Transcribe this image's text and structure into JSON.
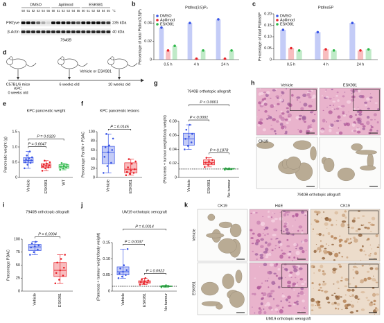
{
  "blot": {
    "panel_label": "a",
    "treatments": [
      "DMSO",
      "Apilimod",
      "ESK981"
    ],
    "temperatures": [
      50,
      51,
      52,
      53,
      54,
      55
    ],
    "temperature_unit": "°C",
    "proteins": [
      "PIKfyve",
      "β-Actin"
    ],
    "sizes": [
      "235 kDa",
      "40 kDa"
    ],
    "cell_line": "7940B"
  },
  "timeline": {
    "panel_label": "d",
    "strain": "C57BL/6 mice",
    "model": "KPC",
    "timepoints": [
      "0 weeks old",
      "6 weeks old",
      "10 weeks old"
    ],
    "treatment": "Vehicle or ESK981"
  },
  "chart_data": [
    {
      "type": "bar",
      "panel_label": "b",
      "title": "PtdIns(3,5)P₂",
      "ylabel": "Percentage of total PtdIns(3,5)P₂",
      "categories": [
        "0.5 h",
        "4 h",
        "24 h"
      ],
      "series": [
        {
          "name": "DMSO",
          "color": "#3a56e6",
          "values": [
            0.035,
            0.04,
            0.044
          ]
        },
        {
          "name": "Apilimod",
          "color": "#e8232a",
          "values": [
            0.01,
            0.001,
            0.001
          ]
        },
        {
          "name": "ESK981",
          "color": "#2fb84a",
          "values": [
            0.015,
            0.01,
            0.01
          ]
        }
      ],
      "ylim": [
        0,
        0.05
      ],
      "yticks": [
        0,
        0.02,
        0.04
      ],
      "legend": "upper left"
    },
    {
      "type": "bar",
      "panel_label": "c",
      "title": "PtdIns5P",
      "ylabel": "Percentage of total PtdIns5P",
      "categories": [
        "0.5 h",
        "4 h",
        "24 h"
      ],
      "series": [
        {
          "name": "DMSO",
          "color": "#3a56e6",
          "values": [
            0.13,
            0.12,
            0.16
          ]
        },
        {
          "name": "Apilimod",
          "color": "#e8232a",
          "values": [
            0.05,
            0.045,
            0.04
          ]
        },
        {
          "name": "ESK981",
          "color": "#2fb84a",
          "values": [
            0.04,
            0.04,
            0.045
          ]
        }
      ],
      "ylim": [
        0,
        0.2
      ],
      "yticks": [
        0,
        0.05,
        {
          "value": 0.1,
          "label": "0.10"
        },
        0.15,
        {
          "value": 0.2,
          "label": "0.20"
        }
      ],
      "legend": "upper left"
    },
    {
      "type": "box",
      "panel_label": "e",
      "title": "KPC pancreatic weight",
      "ylabel": "Pancreatic weight (g)",
      "categories": [
        "Vehicle",
        "ESK981",
        "WT"
      ],
      "colors": [
        "#3a56e6",
        "#e8232a",
        "#2fb84a"
      ],
      "boxes": [
        {
          "min": 0.3,
          "q1": 0.48,
          "median": 0.56,
          "q3": 0.65,
          "max": 0.85
        },
        {
          "min": 0.22,
          "q1": 0.32,
          "median": 0.38,
          "q3": 0.45,
          "max": 0.55
        },
        {
          "min": 0.25,
          "q1": 0.3,
          "median": 0.35,
          "q3": 0.42,
          "max": 0.47
        }
      ],
      "points": [
        [
          0.3,
          0.42,
          0.48,
          0.5,
          0.55,
          0.56,
          0.6,
          0.63,
          0.66,
          0.72,
          0.85
        ],
        [
          0.22,
          0.3,
          0.33,
          0.36,
          0.38,
          0.4,
          0.43,
          0.45,
          0.5,
          0.55
        ],
        [
          0.25,
          0.3,
          0.33,
          0.35,
          0.38,
          0.42,
          0.47
        ]
      ],
      "ylim": [
        0,
        1.5
      ],
      "yticks": [
        0,
        0.5,
        {
          "value": 1,
          "label": "1.0"
        },
        1.5
      ],
      "annotations": [
        {
          "text": "P = 0.0329",
          "between": [
            "Vehicle",
            "WT"
          ]
        },
        {
          "text": "P = 0.0047",
          "between": [
            "Vehicle",
            "ESK981"
          ]
        }
      ]
    },
    {
      "type": "box",
      "panel_label": "f",
      "title": "KPC pancreatic lesions",
      "ylabel": "Percentage PanIN + PDAC",
      "categories": [
        "Vehicle",
        "ESK981"
      ],
      "colors": [
        "#3a56e6",
        "#e8232a"
      ],
      "boxes": [
        {
          "min": 10,
          "q1": 30,
          "median": 55,
          "q3": 68,
          "max": 95
        },
        {
          "min": 5,
          "q1": 10,
          "median": 18,
          "q3": 32,
          "max": 40
        }
      ],
      "points": [
        [
          10,
          25,
          32,
          45,
          55,
          60,
          66,
          70,
          85,
          95
        ],
        [
          5,
          8,
          10,
          12,
          15,
          18,
          22,
          30,
          35,
          40
        ]
      ],
      "ylim": [
        0,
        100
      ],
      "yticks": [
        0,
        20,
        40,
        60,
        80,
        100
      ],
      "annotations": [
        {
          "text": "P = 0.0145",
          "between": [
            "Vehicle",
            "ESK981"
          ]
        }
      ]
    },
    {
      "type": "box",
      "panel_label": "g",
      "title": "7940B orthotopic allograft",
      "ylabel": "(Pancreas + tumour weight/body weight)",
      "categories": [
        "Vehicle",
        "ESK981",
        "No tumour"
      ],
      "colors": [
        "#3a56e6",
        "#e8232a",
        "#2fb84a"
      ],
      "boxes": [
        {
          "min": 0.04,
          "q1": 0.046,
          "median": 0.055,
          "q3": 0.063,
          "max": 0.075
        },
        {
          "min": 0.015,
          "q1": 0.018,
          "median": 0.021,
          "q3": 0.025,
          "max": 0.028
        },
        {
          "min": 0.011,
          "q1": 0.012,
          "median": 0.012,
          "q3": 0.013,
          "max": 0.013
        }
      ],
      "points": [
        [
          0.04,
          0.045,
          0.05,
          0.055,
          0.058,
          0.062,
          0.068,
          0.075
        ],
        [
          0.015,
          0.018,
          0.02,
          0.021,
          0.023,
          0.025,
          0.028
        ],
        [
          0.011,
          0.012,
          0.012,
          0.013,
          0.013
        ]
      ],
      "reference_line": 0.012,
      "ylim": [
        0,
        0.08
      ],
      "yticks": [
        0,
        0.02,
        0.04,
        0.06,
        0.08
      ],
      "annotations": [
        {
          "text": "P < 0.0001",
          "between": [
            "Vehicle",
            "No tumour"
          ]
        },
        {
          "text": "P < 0.0001",
          "between": [
            "Vehicle",
            "ESK981"
          ]
        },
        {
          "text": "P = 0.1878",
          "between": [
            "ESK981",
            "No tumour"
          ]
        }
      ]
    },
    {
      "type": "box",
      "panel_label": "i",
      "title": "7940B orthotopic allograft",
      "ylabel": "Percentage PDAC",
      "categories": [
        "Vehicle",
        "ESK981"
      ],
      "colors": [
        "#3a56e6",
        "#e8232a"
      ],
      "boxes": [
        {
          "min": 70,
          "q1": 78,
          "median": 85,
          "q3": 90,
          "max": 95
        },
        {
          "min": 15,
          "q1": 28,
          "median": 40,
          "q3": 55,
          "max": 70
        }
      ],
      "points": [
        [
          70,
          75,
          80,
          84,
          86,
          88,
          92,
          95
        ],
        [
          15,
          22,
          30,
          35,
          40,
          45,
          55,
          62,
          70
        ]
      ],
      "ylim": [
        0,
        100
      ],
      "yticks": [
        0,
        25,
        50,
        75,
        100
      ],
      "annotations": [
        {
          "text": "P = 0.0004",
          "between": [
            "Vehicle",
            "ESK981"
          ]
        }
      ]
    },
    {
      "type": "box",
      "panel_label": "j",
      "title": "UM19 orthotopic xenograft",
      "ylabel": "(Pancreas + tumour weight/body weight)",
      "categories": [
        "Vehicle",
        "ESK981",
        "No tumour"
      ],
      "colors": [
        "#3a56e6",
        "#e8232a",
        "#2fb84a"
      ],
      "boxes": [
        {
          "min": 0.04,
          "q1": 0.05,
          "median": 0.06,
          "q3": 0.075,
          "max": 0.13
        },
        {
          "min": 0.02,
          "q1": 0.025,
          "median": 0.028,
          "q3": 0.032,
          "max": 0.04
        },
        {
          "min": 0.012,
          "q1": 0.014,
          "median": 0.015,
          "q3": 0.016,
          "max": 0.018
        }
      ],
      "points": [
        [
          0.04,
          0.045,
          0.05,
          0.055,
          0.06,
          0.065,
          0.07,
          0.08,
          0.13
        ],
        [
          0.02,
          0.024,
          0.026,
          0.028,
          0.03,
          0.033,
          0.036,
          0.04
        ],
        [
          0.012,
          0.014,
          0.015,
          0.016,
          0.018
        ]
      ],
      "reference_line": 0.015,
      "ylim": [
        0,
        0.15
      ],
      "yticks": [
        0,
        0.05,
        {
          "value": 0.1,
          "label": "0.10"
        },
        0.15
      ],
      "annotations": [
        {
          "text": "P = 0.0014",
          "between": [
            "Vehicle",
            "No tumour"
          ]
        },
        {
          "text": "P = 0.0037",
          "between": [
            "Vehicle",
            "ESK981"
          ]
        },
        {
          "text": "P = 0.0922",
          "between": [
            "ESK981",
            "No tumour"
          ]
        }
      ]
    }
  ],
  "histology_h": {
    "panel_label": "h",
    "columns": [
      "Vehicle",
      "ESK981"
    ],
    "stain": "CK19",
    "caption": "7940B orthotopic allograft"
  },
  "histology_k": {
    "panel_label": "k",
    "columns": [
      "CK19",
      "H&E",
      "CK19"
    ],
    "rows": [
      "Vehicle",
      "ESK981"
    ],
    "caption": "UM19 orthotopic xenograft"
  }
}
